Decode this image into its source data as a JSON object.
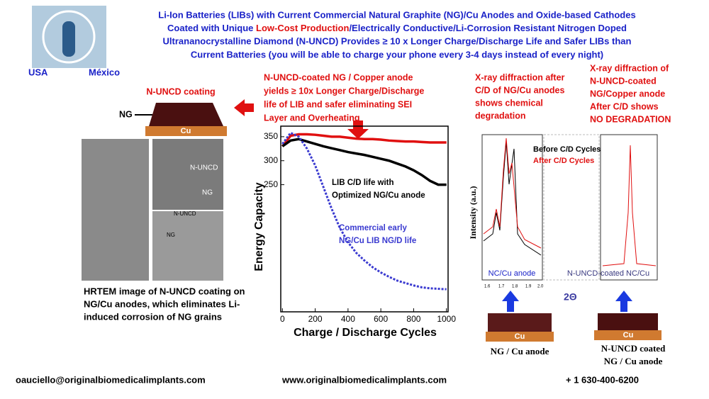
{
  "header": {
    "title_lines": [
      "Li-Ion Batteries (LIBs) with Current Commercial Natural Graphite (NG)/Cu Anodes and Oxide-based Cathodes",
      [
        "Coated with Unique ",
        "Low-Cost Production",
        "/Electrically Conductive/Li-Corrosion Resistant Nitrogen Doped"
      ],
      "Ultrananocrystalline Diamond (N-UNCD) Provides ≥ 10 x Longer Charge/Discharge Life and Safer LIBs than",
      "Current Batteries (you will be able to charge your phone every 3-4 days instead of every night)"
    ],
    "logo_left": "USA",
    "logo_right": "México"
  },
  "left": {
    "coating_label": "N-UNCD coating",
    "ng_label": "NG",
    "cu_label": "Cu",
    "image_labels": [
      "N-UNCD",
      "NG",
      "N-UNCD",
      "NG"
    ],
    "caption_lines": [
      "HRTEM image of N-UNCD coating on",
      "NG/Cu anodes, which eliminates Li-",
      "induced corrosion of NG grains"
    ]
  },
  "middle": {
    "text_lines": [
      "N-UNCD-coated NG / Copper anode",
      "yields ≥ 10x Longer Charge/Discharge",
      "life of LIB and safer eliminating SEI",
      "Layer and Overheating"
    ]
  },
  "chart": {
    "type": "line",
    "ylabel": "Energy Capacity",
    "xlabel": "Charge / Discharge Cycles",
    "xlim": [
      -10,
      1010
    ],
    "ylim": [
      -15,
      372
    ],
    "xticks": [
      0,
      200,
      400,
      600,
      800,
      1000
    ],
    "yticks": [
      250,
      300,
      350
    ],
    "x": [
      0,
      50,
      100,
      150,
      200,
      250,
      300,
      350,
      400,
      450,
      500,
      550,
      600,
      650,
      700,
      750,
      800,
      850,
      900,
      950,
      1000
    ],
    "series": [
      {
        "color": "#e01010",
        "values": [
          330,
          352,
          355,
          355,
          354,
          352,
          350,
          350,
          348,
          346,
          345,
          345,
          344,
          342,
          341,
          340,
          340,
          339,
          338,
          338,
          338
        ]
      },
      {
        "color": "#000000",
        "values": [
          330,
          342,
          345,
          340,
          335,
          330,
          326,
          322,
          318,
          315,
          312,
          308,
          304,
          300,
          294,
          288,
          280,
          270,
          258,
          250,
          250
        ]
      },
      {
        "color": "#3a3ad0",
        "values": [
          335,
          358,
          350,
          325,
          290,
          245,
          200,
          160,
          130,
          108,
          92,
          78,
          67,
          58,
          50,
          45,
          40,
          36,
          34,
          33,
          32
        ]
      }
    ],
    "annotations": [
      "LIB C/D life with",
      "Optimized NG/Cu anode",
      "Commercial early",
      "NG/Cu LIB NG/D life"
    ]
  },
  "right": {
    "xrd_text_lines": [
      "X-ray diffraction after",
      "C/D of NG/Cu anodes",
      "shows chemical",
      "degradation"
    ],
    "uncd_text_lines": [
      "X-ray diffraction of",
      "N-UNCD-coated",
      "NG/Copper anode",
      "After C/D shows",
      "NO DEGRADATION"
    ],
    "ylabel": "Intensity (a.u.)",
    "legend": [
      "Before C/D Cycles",
      "After C/D Cycles"
    ],
    "panel_labels": [
      "NC/Cu anode",
      "N-UNCD-coated NC/Cu"
    ],
    "xlabel": "2Θ",
    "ticks": [
      "1.6",
      "1.7",
      "1.8",
      "1.9",
      "2.0"
    ],
    "anode_label": "NG / Cu anode",
    "coated_lines": [
      "N-UNCD coated",
      "NG / Cu anode"
    ],
    "cu": "Cu"
  },
  "footer": {
    "email": "oauciello@originalbiomedicalimplants.com",
    "website": "www.originalbiomedicalimplants.com",
    "phone": "+ 1 630-400-6200"
  }
}
